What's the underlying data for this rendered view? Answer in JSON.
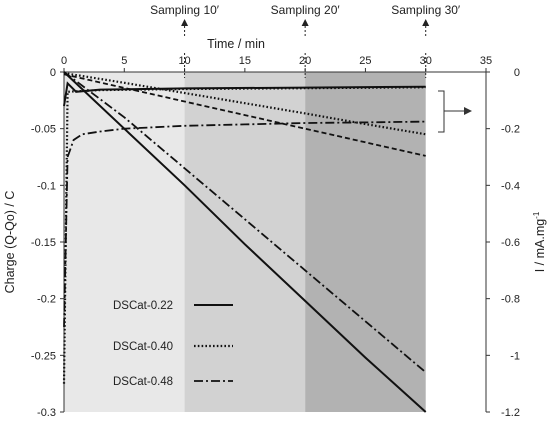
{
  "chart_data": {
    "type": "line",
    "title": "",
    "xlabel": "Time / min",
    "ylabel_left": "Charge (Q-Qo) / C",
    "ylabel_right": "I / mA.mg",
    "ylabel_right_sup": "-1",
    "xlim": [
      0,
      35
    ],
    "ylim_left": [
      -0.3,
      0
    ],
    "ylim_right": [
      -1.2,
      0
    ],
    "x_ticks": [
      "0",
      "5",
      "10",
      "15",
      "20",
      "25",
      "30",
      "35"
    ],
    "y_left_ticks": [
      "0",
      "-0.05",
      "-0.1",
      "-0.15",
      "-0.2",
      "-0.25",
      "-0.3"
    ],
    "y_right_ticks": [
      "0",
      "-0.2",
      "-0.4",
      "-0.6",
      "-0.8",
      "-1",
      "-1.2"
    ],
    "grid": false,
    "legend_position": "bottom-left",
    "sampling_marks": [
      {
        "label": "Sampling 10′",
        "x": 10
      },
      {
        "label": "Sampling 20′",
        "x": 20
      },
      {
        "label": "Sampling 30′",
        "x": 30
      }
    ],
    "shaded_regions": [
      {
        "x": [
          0,
          10
        ],
        "color": "#e8e8e8"
      },
      {
        "x": [
          10,
          20
        ],
        "color": "#d2d2d2"
      },
      {
        "x": [
          20,
          30
        ],
        "color": "#b2b2b2"
      }
    ],
    "series": [
      {
        "name": "DSCat-0.22",
        "style": "solid",
        "charge": {
          "x": [
            0,
            5,
            10,
            15,
            20,
            25,
            30
          ],
          "y": [
            0,
            -0.05,
            -0.1,
            -0.152,
            -0.202,
            -0.252,
            -0.3
          ]
        },
        "current": {
          "x": [
            0,
            0.3,
            1,
            3,
            10,
            20,
            30
          ],
          "y": [
            -0.12,
            -0.04,
            -0.07,
            -0.062,
            -0.058,
            -0.055,
            -0.052
          ]
        }
      },
      {
        "name": "DSCat-0.40",
        "style": "dotted",
        "charge": {
          "x": [
            0,
            5,
            10,
            15,
            20,
            25,
            30
          ],
          "y": [
            -0.001,
            -0.0095,
            -0.0185,
            -0.0275,
            -0.0365,
            -0.046,
            -0.055
          ]
        },
        "current": {
          "x": [
            0,
            0.3,
            1,
            3,
            10,
            20,
            30
          ],
          "y": [
            -1.1,
            -0.07,
            -0.068,
            -0.064,
            -0.06,
            -0.057,
            -0.054
          ]
        }
      },
      {
        "name": "DSCat-0.48",
        "style": "dash-dot",
        "charge": {
          "x": [
            0,
            5,
            10,
            15,
            20,
            25,
            30
          ],
          "y": [
            0,
            -0.04,
            -0.085,
            -0.13,
            -0.175,
            -0.22,
            -0.265
          ]
        },
        "current": {
          "x": [
            0,
            0.3,
            0.8,
            1.5,
            3,
            5,
            10,
            15,
            20,
            25,
            30
          ],
          "y": [
            -0.9,
            -0.3,
            -0.24,
            -0.22,
            -0.21,
            -0.2,
            -0.19,
            -0.185,
            -0.18,
            -0.178,
            -0.175
          ]
        }
      }
    ],
    "extra_series": [
      {
        "style": "dashed",
        "axis": "left",
        "x": [
          0,
          5,
          10,
          15,
          20,
          25,
          30
        ],
        "y": [
          -0.002,
          -0.014,
          -0.026,
          -0.038,
          -0.05,
          -0.062,
          -0.074
        ]
      }
    ]
  }
}
